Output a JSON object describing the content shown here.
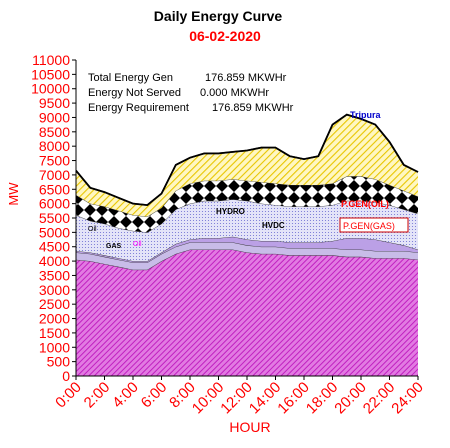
{
  "chart_data": {
    "type": "area",
    "title": "Daily Energy Curve",
    "subtitle": "06-02-2020",
    "xlabel": "HOUR",
    "ylabel": "MW",
    "ylim": [
      0,
      11000
    ],
    "y_ticks": [
      0,
      500,
      1000,
      1500,
      2000,
      2500,
      3000,
      3500,
      4000,
      4500,
      5000,
      5500,
      6000,
      6500,
      7000,
      7500,
      8000,
      8500,
      9000,
      9500,
      10000,
      10500,
      11000
    ],
    "y_tick_labels": [
      "0",
      "500",
      "1000",
      "1500",
      "2000",
      "2500",
      "3000",
      "3500",
      "4000",
      "4500",
      "5000",
      "5500",
      "6000",
      "6500",
      "7000",
      "7500",
      "8000",
      "8500",
      "9000",
      "9500",
      "10000",
      "10500",
      "11000"
    ],
    "x_tick_labels": [
      "0:00",
      "2:00",
      "4:00",
      "6:00",
      "8:00",
      "10:00",
      "12:00",
      "14:00",
      "16:00",
      "18:00",
      "20:00",
      "22:00",
      "24:00"
    ],
    "x": [
      0,
      1,
      2,
      3,
      4,
      5,
      6,
      7,
      8,
      9,
      10,
      11,
      12,
      13,
      14,
      15,
      16,
      17,
      18,
      19,
      20,
      21,
      22,
      23,
      24
    ],
    "stacked": true,
    "series": [
      {
        "name": "P.GEN(GAS)",
        "values": [
          4050,
          4000,
          3900,
          3800,
          3700,
          3700,
          4000,
          4250,
          4400,
          4400,
          4400,
          4400,
          4300,
          4250,
          4250,
          4200,
          4200,
          4200,
          4200,
          4150,
          4150,
          4100,
          4100,
          4100,
          4050
        ]
      },
      {
        "name": "GAS",
        "values": [
          250,
          250,
          250,
          250,
          250,
          250,
          250,
          250,
          250,
          250,
          250,
          250,
          250,
          250,
          250,
          250,
          250,
          250,
          250,
          250,
          250,
          250,
          250,
          250,
          250
        ]
      },
      {
        "name": "OIL",
        "values": [
          50,
          50,
          50,
          50,
          50,
          50,
          50,
          100,
          100,
          150,
          150,
          200,
          200,
          200,
          200,
          200,
          200,
          200,
          250,
          400,
          400,
          400,
          300,
          200,
          100
        ]
      },
      {
        "name": "HVDC",
        "values": [
          1250,
          1100,
          1100,
          1050,
          1050,
          1000,
          1000,
          1200,
          1250,
          1300,
          1300,
          1300,
          1350,
          1300,
          1250,
          1250,
          1250,
          1250,
          1250,
          1300,
          1300,
          1300,
          1300,
          1250,
          1250
        ]
      },
      {
        "name": "P.GEN(OIL)",
        "values": [
          700,
          600,
          600,
          600,
          550,
          550,
          550,
          650,
          700,
          700,
          700,
          700,
          700,
          750,
          750,
          750,
          750,
          750,
          750,
          850,
          850,
          800,
          700,
          650,
          600
        ]
      },
      {
        "name": "Tripura",
        "values": [
          850,
          550,
          500,
          450,
          400,
          400,
          500,
          900,
          900,
          950,
          950,
          950,
          1050,
          1200,
          1250,
          1000,
          900,
          1000,
          2050,
          2150,
          2000,
          1900,
          1500,
          900,
          850
        ]
      }
    ],
    "total": [
      7150,
      6550,
      6400,
      6200,
      6000,
      5950,
      6350,
      7350,
      7600,
      7750,
      7750,
      7800,
      7850,
      7950,
      7950,
      7650,
      7550,
      7650,
      8750,
      9100,
      8950,
      8750,
      8150,
      7350,
      7100
    ],
    "series_labels": [
      "Tripura",
      "P.GEN(OIL)",
      "HYDRO",
      "HVDC",
      "P.GEN(GAS)",
      "Oil",
      "GAS",
      "Oil"
    ],
    "colors": {
      "axis_text": "#ff0000",
      "title": "#000000",
      "subtitle": "#ff0000",
      "gas_fill": "#cc33cc",
      "gas_band": "#c9b7e6",
      "hvdc_fill": "#bbbbee",
      "diamond_band": "#000000",
      "tripura_fill": "#f5dc3c",
      "tripura_label": "#0000cc",
      "outline": "#000000"
    },
    "annotation": {
      "lines": [
        {
          "label": "Total Energy Gen",
          "value": "176.859 MKWHr"
        },
        {
          "label": "Energy Not Served",
          "value": "0.000 MKWHr"
        },
        {
          "label": "Energy Requirement",
          "value": "176.859 MKWHr"
        }
      ]
    },
    "grid": false,
    "legend": "none"
  }
}
